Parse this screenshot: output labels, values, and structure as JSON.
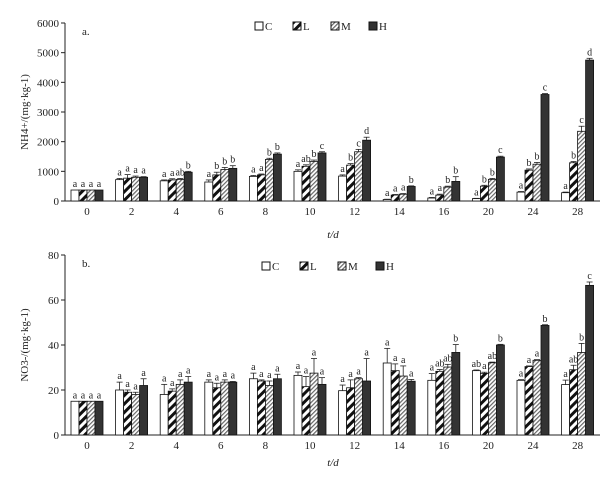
{
  "chart_data": [
    {
      "type": "bar",
      "panel_label": "a.",
      "ylabel": "NH4+/(mg·kg-1)",
      "xlabel": "t/d",
      "ylim": [
        0,
        6000
      ],
      "yticks": [
        "0",
        "1000",
        "2000",
        "3000",
        "4000",
        "5000",
        "6000"
      ],
      "categories": [
        "0",
        "2",
        "4",
        "6",
        "8",
        "10",
        "12",
        "14",
        "16",
        "20",
        "24",
        "28"
      ],
      "series": [
        {
          "name": "C",
          "values": [
            370,
            720,
            680,
            640,
            830,
            1000,
            840,
            50,
            100,
            80,
            300,
            280
          ],
          "errors": [
            0,
            40,
            30,
            70,
            30,
            50,
            40,
            10,
            20,
            10,
            20,
            20
          ]
        },
        {
          "name": "L",
          "values": [
            370,
            770,
            710,
            880,
            880,
            1170,
            1210,
            200,
            200,
            500,
            1040,
            1290
          ],
          "errors": [
            0,
            120,
            40,
            90,
            30,
            50,
            50,
            20,
            30,
            30,
            40,
            40
          ]
        },
        {
          "name": "M",
          "values": [
            370,
            800,
            730,
            1060,
            1400,
            1330,
            1660,
            230,
            470,
            730,
            1240,
            2350
          ],
          "errors": [
            0,
            40,
            30,
            70,
            40,
            50,
            80,
            20,
            30,
            30,
            60,
            170
          ]
        },
        {
          "name": "H",
          "values": [
            370,
            800,
            970,
            1100,
            1580,
            1620,
            2050,
            490,
            660,
            1480,
            3590,
            4750
          ],
          "errors": [
            0,
            20,
            30,
            90,
            40,
            40,
            100,
            20,
            160,
            30,
            30,
            60
          ]
        }
      ],
      "letters": [
        [
          "a",
          "a",
          "a",
          "a"
        ],
        [
          "a",
          "a",
          "a",
          "a"
        ],
        [
          "a",
          "a",
          "ab",
          "b"
        ],
        [
          "a",
          "b",
          "b",
          "b"
        ],
        [
          "a",
          "a",
          "b",
          "b"
        ],
        [
          "a",
          "ab",
          "b",
          "c"
        ],
        [
          "a",
          "b",
          "c",
          "d"
        ],
        [
          "a",
          "a",
          "a",
          "b"
        ],
        [
          "a",
          "a",
          "b",
          "b"
        ],
        [
          "a",
          "b",
          "b",
          "c"
        ],
        [
          "a",
          "b",
          "b",
          "c"
        ],
        [
          "a",
          "b",
          "c",
          "d"
        ]
      ]
    },
    {
      "type": "bar",
      "panel_label": "b.",
      "ylabel": "NO3-/(mg·kg-1)",
      "xlabel": "t/d",
      "ylim": [
        0,
        80
      ],
      "yticks": [
        "0",
        "20",
        "40",
        "60",
        "80"
      ],
      "categories": [
        "0",
        "2",
        "4",
        "6",
        "8",
        "10",
        "12",
        "14",
        "16",
        "20",
        "24",
        "28"
      ],
      "series": [
        {
          "name": "C",
          "values": [
            15,
            20,
            18,
            23.5,
            25,
            26.5,
            19.7,
            32,
            24.3,
            28.6,
            24.3,
            22.4
          ],
          "errors": [
            0,
            3.5,
            4.5,
            1,
            2.5,
            1.5,
            2.5,
            6.5,
            3,
            0.3,
            0.3,
            2
          ]
        },
        {
          "name": "L",
          "values": [
            15,
            19,
            19.5,
            21,
            24,
            21.5,
            21,
            28.6,
            28.3,
            27.4,
            30.4,
            29
          ],
          "errors": [
            0,
            1,
            1,
            2,
            0.5,
            4.5,
            3.5,
            3,
            0.8,
            0.5,
            0.3,
            2
          ]
        },
        {
          "name": "M",
          "values": [
            15,
            18,
            22.5,
            23.5,
            22,
            27.5,
            25,
            26.2,
            30.2,
            32.1,
            33.2,
            36.7
          ],
          "errors": [
            0,
            1,
            2,
            1,
            2,
            6.5,
            0.5,
            4.5,
            1.2,
            0.3,
            0.3,
            4
          ]
        },
        {
          "name": "H",
          "values": [
            15,
            22,
            23.5,
            23.5,
            25,
            22.5,
            24,
            23.9,
            36.7,
            40,
            48.7,
            66.5
          ],
          "errors": [
            0,
            3,
            2.5,
            0.3,
            2,
            3,
            10,
            0.8,
            3.5,
            0.3,
            0.3,
            1.5
          ]
        }
      ],
      "letters": [
        [
          "a",
          "a",
          "a",
          "a"
        ],
        [
          "a",
          "a",
          "a",
          "a"
        ],
        [
          "a",
          "a",
          "a",
          "a"
        ],
        [
          "a",
          "a",
          "a",
          "a"
        ],
        [
          "a",
          "a",
          "a",
          "a"
        ],
        [
          "a",
          "a",
          "a",
          "a"
        ],
        [
          "a",
          "a",
          "a",
          "a"
        ],
        [
          "a",
          "a",
          "a",
          "a"
        ],
        [
          "a",
          "ab",
          "ab",
          "b"
        ],
        [
          "ab",
          "a",
          "ab",
          "b"
        ],
        [
          "a",
          "a",
          "a",
          "b"
        ],
        [
          "a",
          "ab",
          "b",
          "c"
        ]
      ]
    }
  ]
}
